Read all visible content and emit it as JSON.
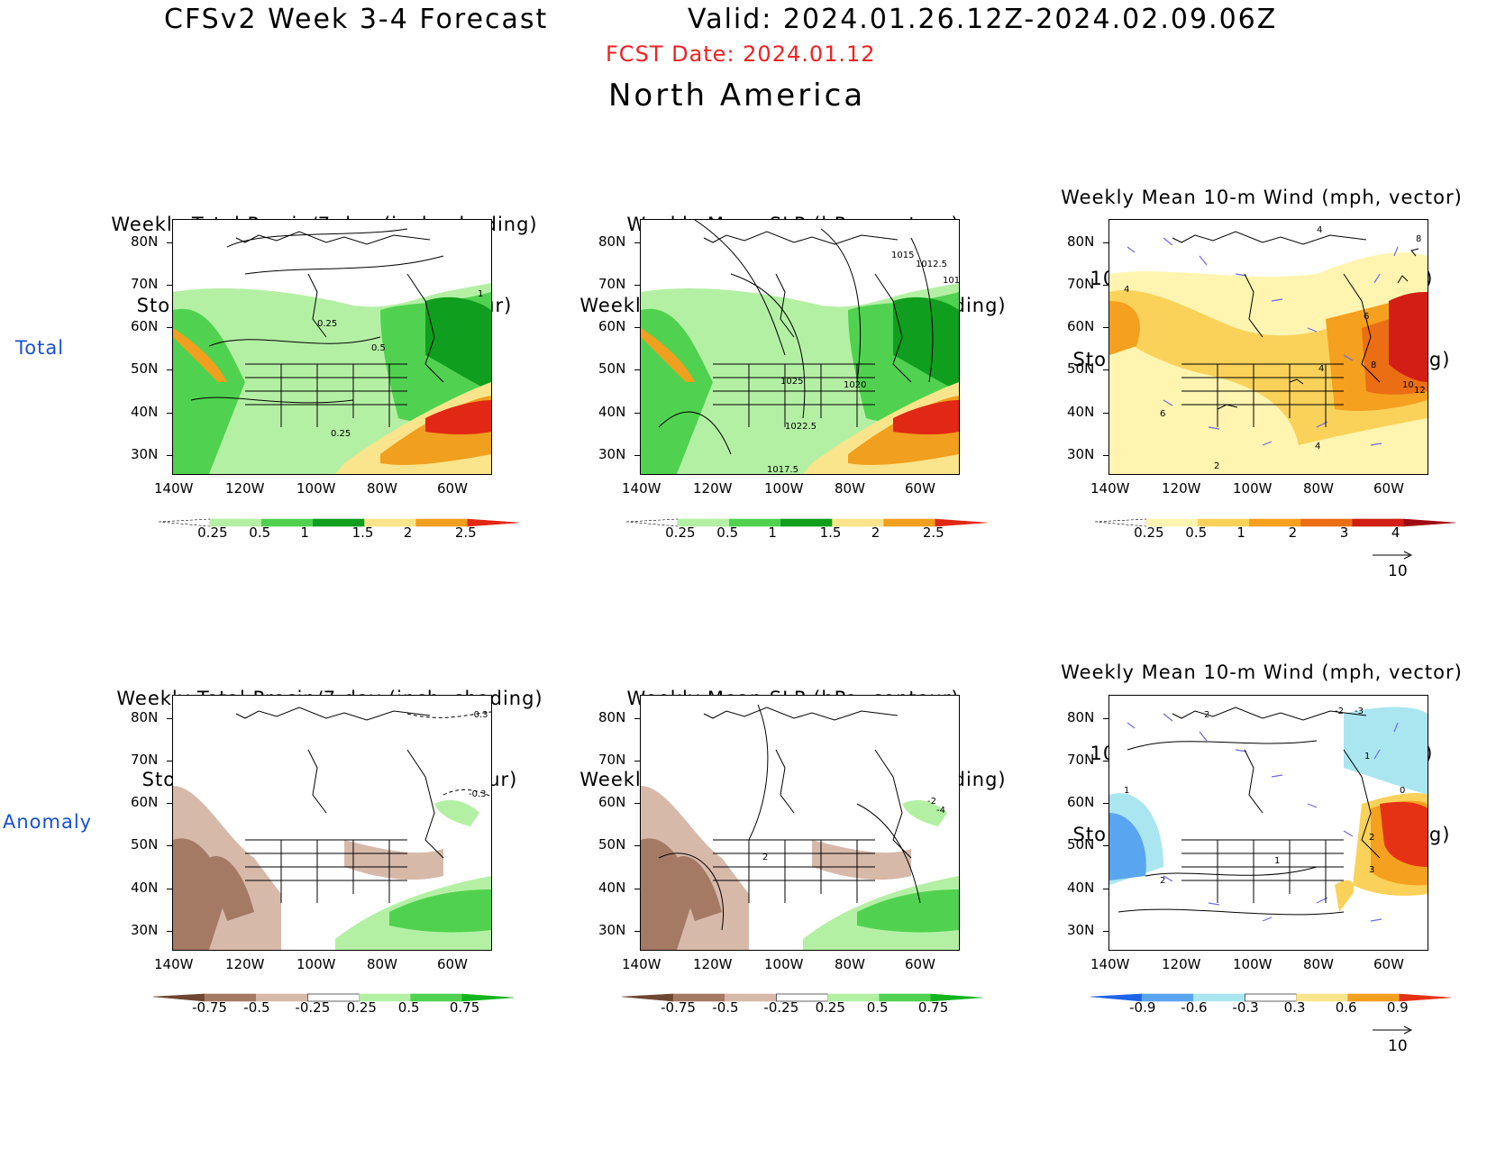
{
  "header": {
    "title": "CFSv2 Week 3-4 Forecast",
    "valid": "Valid: 2024.01.26.12Z-2024.02.09.06Z",
    "fcst_date": "FCST Date: 2024.01.12",
    "region": "North America"
  },
  "rows": [
    {
      "label": "Total"
    },
    {
      "label": "Anomaly"
    }
  ],
  "axes": {
    "lat_ticks": [
      "80N",
      "70N",
      "60N",
      "50N",
      "40N",
      "30N"
    ],
    "lon_ticks": [
      "140W",
      "120W",
      "100W",
      "80W",
      "60W"
    ]
  },
  "panels": [
    {
      "id": "p1",
      "title1": "Weekly Total Precip/7-day (inch, shading)",
      "title2": "Storm Track Density/7-day (contour)",
      "colorbar": [
        "0.25",
        "0.5",
        "1",
        "1.5",
        "2",
        "2.5"
      ],
      "contour_labels": [
        "0.25",
        "0.5",
        "0.25",
        "1"
      ]
    },
    {
      "id": "p2",
      "title1": "Weekly Mean SLP (hPa, contour)",
      "title2": "Weekly Total Precip/7-day (inch, shading)",
      "colorbar": [
        "0.25",
        "0.5",
        "1",
        "1.5",
        "2",
        "2.5"
      ],
      "contour_labels": [
        "1015",
        "1012.5",
        "101",
        "1025",
        "1020",
        "1022.5",
        "1017.5"
      ]
    },
    {
      "id": "p3",
      "title0": "Weekly Mean 10-m Wind (mph, vector)",
      "title1": "10-m Wind Speed (mph, contour)",
      "title2": "Storm Track Density/7-day (shading)",
      "colorbar": [
        "0.25",
        "0.5",
        "1",
        "2",
        "3",
        "4"
      ],
      "vector_ref": "10",
      "contour_labels": [
        "4",
        "8",
        "4",
        "6",
        "4",
        "8",
        "10",
        "12",
        "6",
        "4",
        "2"
      ]
    },
    {
      "id": "p4",
      "title1": "Weekly Total Precip/7-day (inch, shading)",
      "title2": "Storm Track Density/7-day (contour)",
      "colorbar": [
        "-0.75",
        "-0.5",
        "-0.25",
        "0.25",
        "0.5",
        "0.75"
      ],
      "contour_labels": [
        "-0.3",
        "-0.3"
      ]
    },
    {
      "id": "p5",
      "title1": "Weekly Mean SLP (hPa, contour)",
      "title2": "Weekly Total Precip/7-day (inch, shading)",
      "colorbar": [
        "-0.75",
        "-0.5",
        "-0.25",
        "0.25",
        "0.5",
        "0.75"
      ],
      "contour_labels": [
        "-2",
        "-4",
        "2"
      ]
    },
    {
      "id": "p6",
      "title0": "Weekly Mean 10-m Wind (mph, vector)",
      "title1": "10-m Wind Speed (mph, contour)",
      "title2": "Storm Track Density/7-day (shading)",
      "colorbar": [
        "-0.9",
        "-0.6",
        "-0.3",
        "0.3",
        "0.6",
        "0.9"
      ],
      "vector_ref": "10",
      "contour_labels": [
        "2",
        "-2",
        "-3",
        "1",
        "0",
        "2",
        "1",
        "3",
        "1",
        "2"
      ]
    }
  ],
  "colors": {
    "precip": [
      "#ffffff",
      "#b4f0a4",
      "#50d250",
      "#109e1e",
      "#fae48c",
      "#f0a01e",
      "#e12814"
    ],
    "storm": [
      "#ffffff",
      "#fff5b0",
      "#fad25a",
      "#f5a01e",
      "#eb6e14",
      "#d21e14",
      "#a00a14"
    ],
    "anom_precip": [
      "#6e4632",
      "#a57a64",
      "#d7b9aa",
      "#ffffff",
      "#b4f0a4",
      "#50d250",
      "#14b41e"
    ],
    "anom_storm": [
      "#1e64e6",
      "#5aa5f0",
      "#aae6f0",
      "#ffffff",
      "#fae48c",
      "#f5a01e",
      "#e63214"
    ],
    "title_red": "#ee2222",
    "row_label_blue": "#1a4fd6"
  }
}
